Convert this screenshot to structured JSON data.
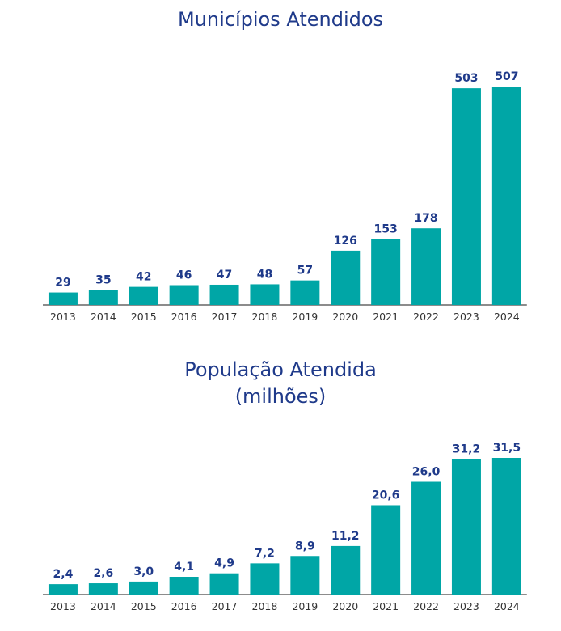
{
  "colors": {
    "bar": "#00a6a6",
    "title": "#1f3a8a",
    "label": "#1f3a8a",
    "axis": "#666666"
  },
  "chart_data": [
    {
      "type": "bar",
      "title": "Municípios Atendidos",
      "subtitle": "",
      "categories": [
        "2013",
        "2014",
        "2015",
        "2016",
        "2017",
        "2018",
        "2019",
        "2020",
        "2021",
        "2022",
        "2023",
        "2024"
      ],
      "values": [
        29,
        35,
        42,
        46,
        47,
        48,
        57,
        126,
        153,
        178,
        503,
        507
      ],
      "value_labels": [
        "29",
        "35",
        "42",
        "46",
        "47",
        "48",
        "57",
        "126",
        "153",
        "178",
        "503",
        "507"
      ],
      "ylim": [
        0,
        507
      ],
      "grid": false,
      "legend": "none"
    },
    {
      "type": "bar",
      "title": "População Atendida",
      "subtitle": "(milhões)",
      "categories": [
        "2013",
        "2014",
        "2015",
        "2016",
        "2017",
        "2018",
        "2019",
        "2020",
        "2021",
        "2022",
        "2023",
        "2024"
      ],
      "values": [
        2.4,
        2.6,
        3.0,
        4.1,
        4.9,
        7.2,
        8.9,
        11.2,
        20.6,
        26.0,
        31.2,
        31.5
      ],
      "value_labels": [
        "2,4",
        "2,6",
        "3,0",
        "4,1",
        "4,9",
        "7,2",
        "8,9",
        "11,2",
        "20,6",
        "26,0",
        "31,2",
        "31,5"
      ],
      "ylim": [
        0,
        31.5
      ],
      "grid": false,
      "legend": "none"
    }
  ]
}
